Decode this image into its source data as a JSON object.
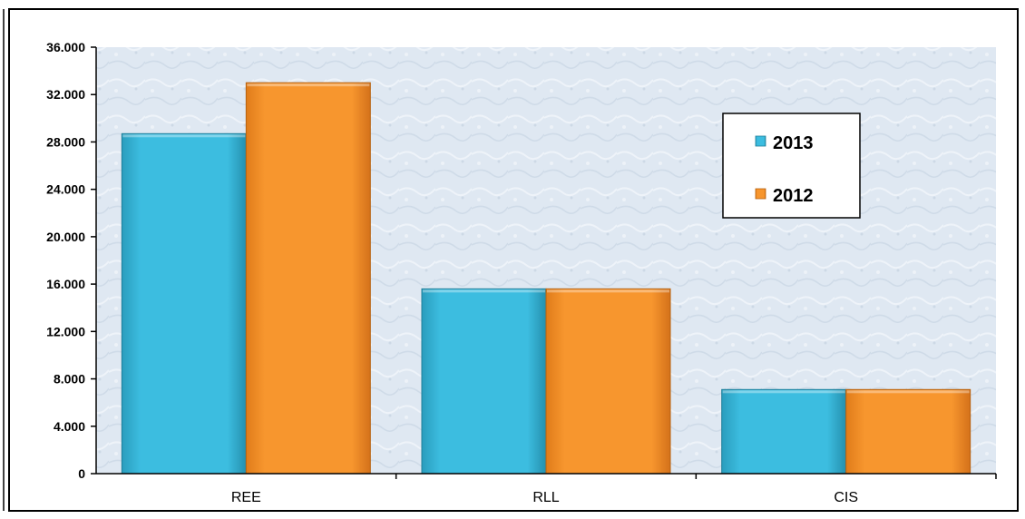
{
  "chart_data": {
    "type": "bar",
    "categories": [
      "REE",
      "RLL",
      "CIS"
    ],
    "series": [
      {
        "name": "2013",
        "color": "#3cbde0",
        "values": [
          28700,
          15600,
          7100
        ]
      },
      {
        "name": "2012",
        "color": "#f7962e",
        "values": [
          33000,
          15600,
          7100
        ]
      }
    ],
    "ylim": [
      0,
      36000
    ],
    "yticks": [
      "0",
      "4.000",
      "8.000",
      "12.000",
      "16.000",
      "20.000",
      "24.000",
      "28.000",
      "32.000",
      "36.000"
    ],
    "grid": false,
    "legend_position": "top-right",
    "background": "#dde7f1"
  }
}
